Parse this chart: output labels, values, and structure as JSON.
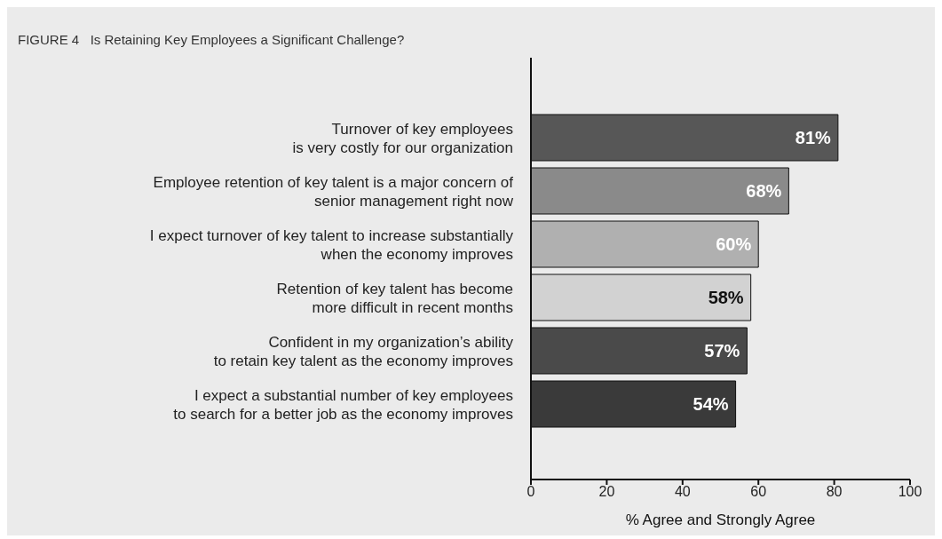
{
  "chart_data": {
    "type": "bar",
    "orientation": "horizontal",
    "title": "FIGURE 4   Is Retaining Key Employees a Significant Challenge?",
    "xlabel": "% Agree and Strongly Agree",
    "categories": [
      "Turnover of key employees\nis very costly for our organization",
      "Employee retention of key talent is a major concern of\nsenior management right now",
      "I expect turnover of key talent to increase substantially\nwhen the economy improves",
      "Retention of key talent has become\nmore difficult in recent months",
      "Confident in my organization’s ability\nto retain key talent as the economy improves",
      "I expect a substantial number of key employees\nto search for a better job as the economy improves"
    ],
    "values": [
      81,
      68,
      60,
      58,
      57,
      54
    ],
    "colors": [
      "#575757",
      "#8a8a8a",
      "#b0b0b0",
      "#d2d2d2",
      "#4a4a4a",
      "#3a3a3a"
    ],
    "value_labels": [
      "81%",
      "68%",
      "60%",
      "58%",
      "57%",
      "54%"
    ],
    "xlim": [
      0,
      100
    ],
    "xticks": [
      0,
      20,
      40,
      60,
      80,
      100
    ],
    "grid": false,
    "legend": false
  }
}
